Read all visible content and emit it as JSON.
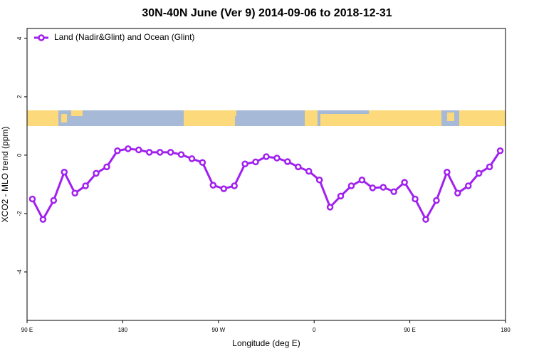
{
  "chart_data": {
    "type": "line",
    "title": "30N-40N June (Ver 9)   2014-09-06 to 2018-12-31",
    "x_label": "Longitude (deg E)",
    "y_label": "XCO2 - MLO trend (ppm)",
    "legend_position": "top-left",
    "xlim": [
      90,
      540
    ],
    "ylim": [
      -5.66,
      4.34
    ],
    "xticks": [
      {
        "value": 90,
        "label": "90 E"
      },
      180,
      {
        "value": 270,
        "label": "90 W"
      },
      {
        "value": 360,
        "label": "0"
      },
      {
        "value": 450,
        "label": "90 E"
      },
      {
        "value": 540,
        "label": "180"
      }
    ],
    "yticks": [
      -4,
      -2,
      0,
      2,
      4
    ],
    "x": [
      95,
      105,
      115,
      125,
      135,
      145,
      155,
      165,
      175,
      185,
      195,
      205,
      215,
      225,
      235,
      245,
      255,
      265,
      275,
      285,
      295,
      305,
      315,
      325,
      335,
      345,
      355,
      365,
      375,
      385,
      395,
      405,
      415,
      425,
      435,
      445,
      455,
      465,
      475,
      485,
      495,
      505,
      515,
      525,
      535
    ],
    "series": [
      {
        "name": "Land (Nadir&Glint) and Ocean (Glint)",
        "color": "#a020f0",
        "values": [
          -1.5,
          -2.2,
          -1.55,
          -0.58,
          -1.3,
          -1.05,
          -0.62,
          -0.4,
          0.15,
          0.22,
          0.18,
          0.1,
          0.1,
          0.1,
          0.02,
          -0.12,
          -0.25,
          -1.03,
          -1.15,
          -1.05,
          -0.3,
          -0.23,
          -0.05,
          -0.1,
          -0.22,
          -0.4,
          -0.55,
          -0.85,
          -1.78,
          -1.4,
          -1.05,
          -0.85,
          -1.12,
          -1.1,
          -1.25,
          -0.93,
          -1.5,
          -2.2,
          -1.55,
          -0.58,
          -1.3,
          -1.05,
          -0.62,
          -0.4,
          0.15
        ]
      }
    ]
  }
}
